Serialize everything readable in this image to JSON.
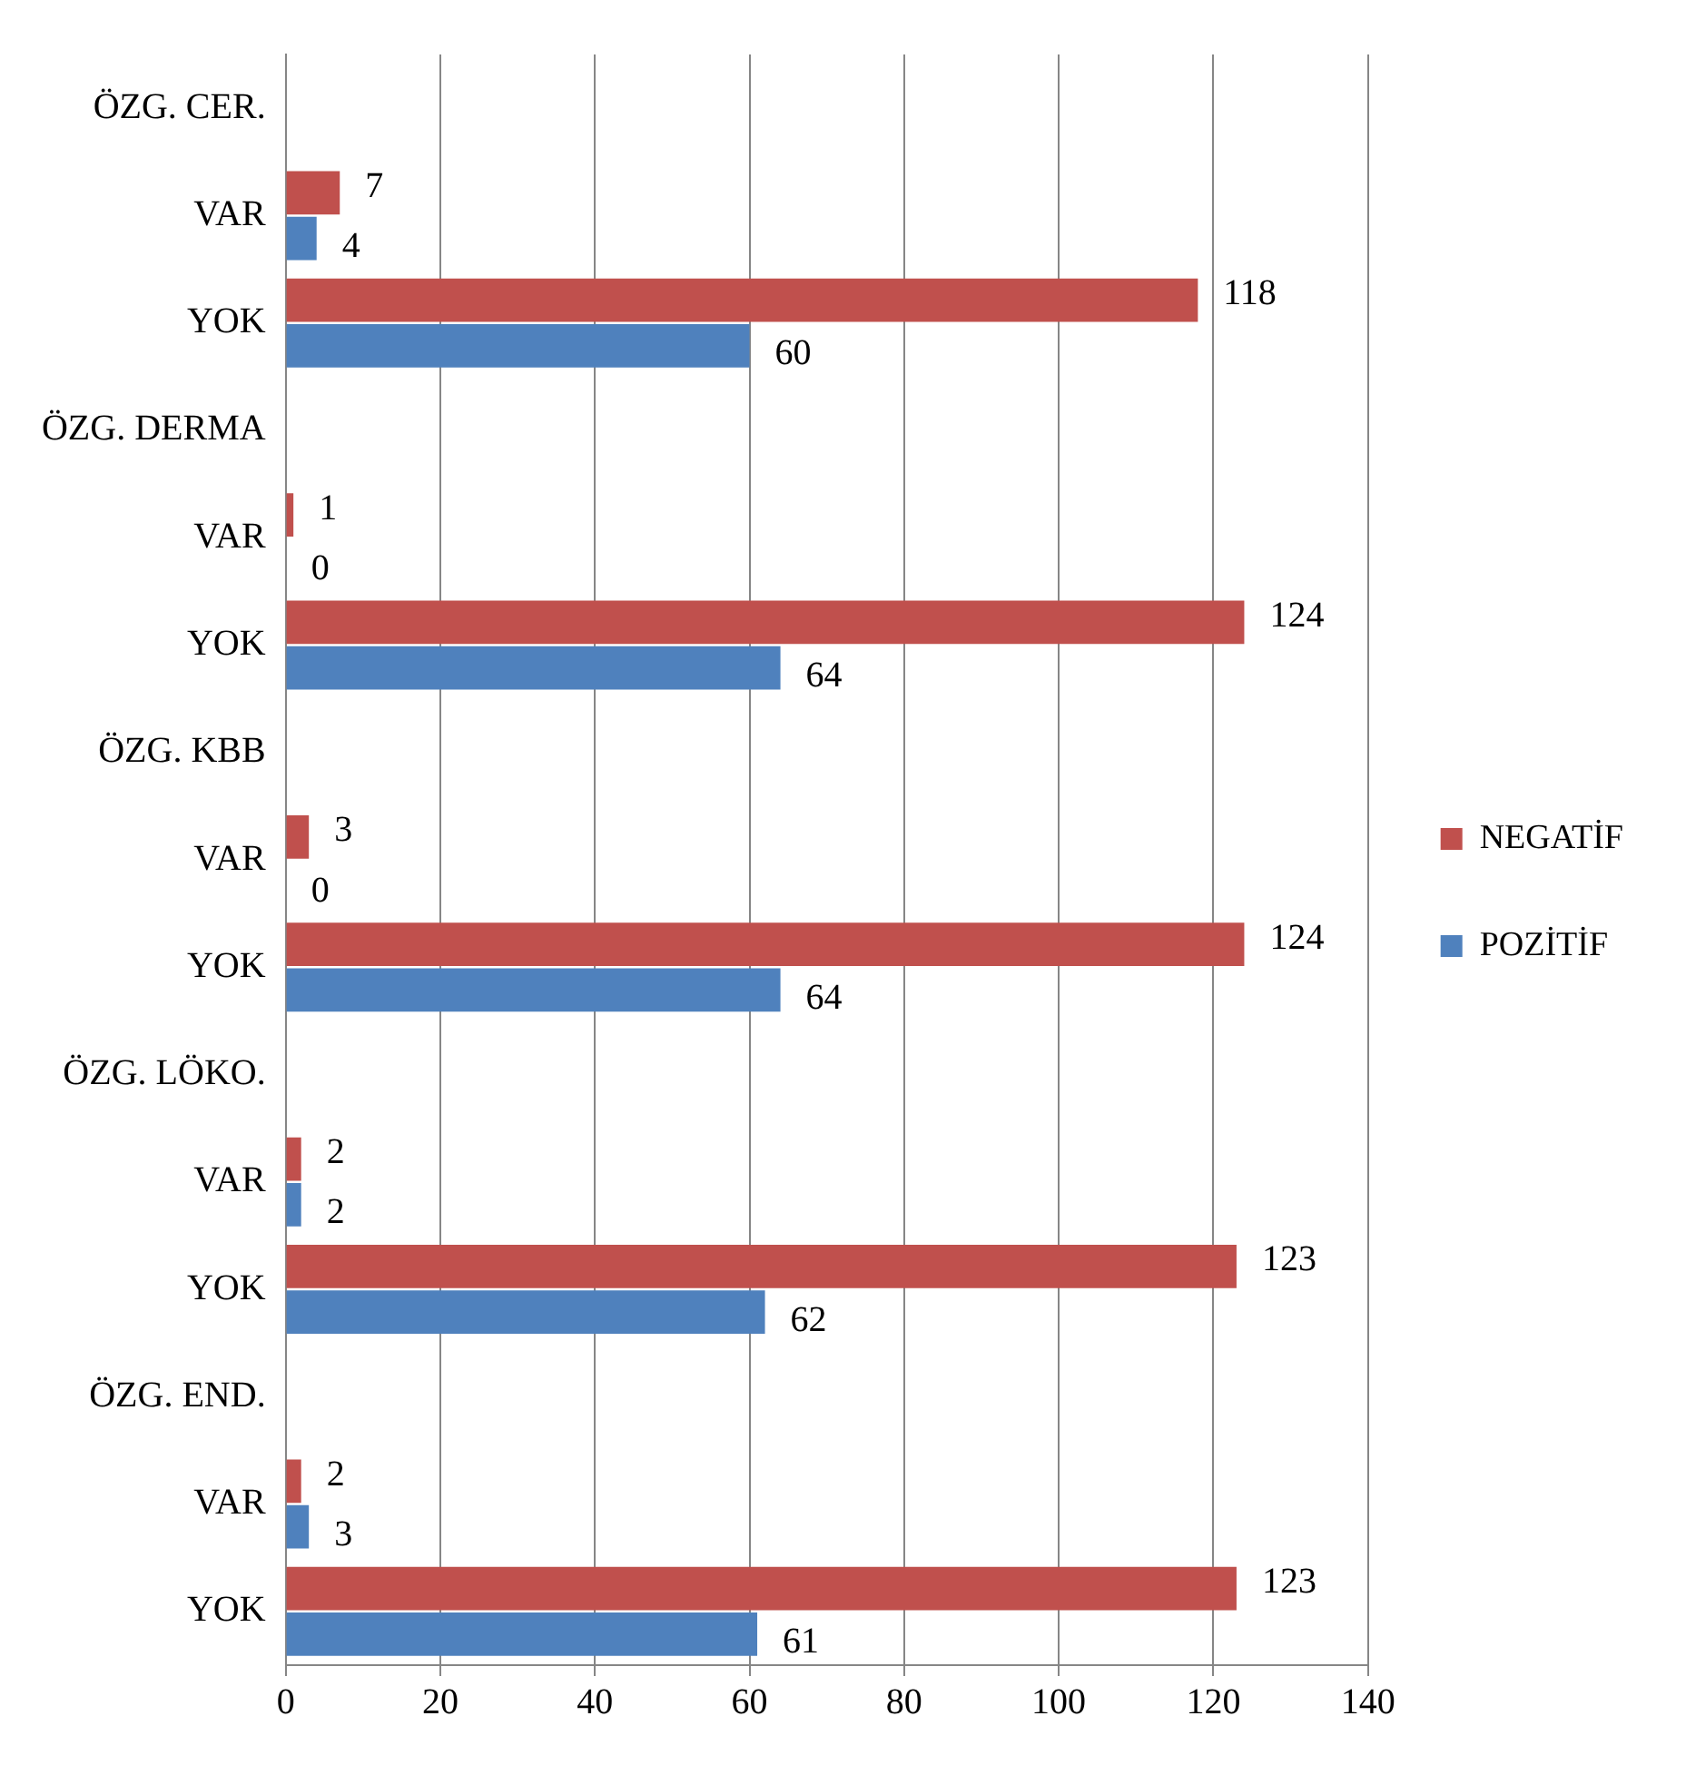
{
  "chart_data": {
    "type": "bar",
    "orientation": "horizontal",
    "categories": [
      "ÖZG. CER.",
      "VAR",
      "YOK",
      "ÖZG. DERMA",
      "VAR",
      "YOK",
      "ÖZG. KBB",
      "VAR",
      "YOK",
      "ÖZG. LÖKO.",
      "VAR",
      "YOK",
      "ÖZG. END.",
      "VAR",
      "YOK"
    ],
    "series": [
      {
        "name": "NEGATİF",
        "color": "#c0504d",
        "values": [
          null,
          7,
          118,
          null,
          1,
          124,
          null,
          3,
          124,
          null,
          2,
          123,
          null,
          2,
          123
        ]
      },
      {
        "name": "POZİTİF",
        "color": "#4f81bd",
        "values": [
          null,
          4,
          60,
          null,
          0,
          64,
          null,
          0,
          64,
          null,
          2,
          62,
          null,
          3,
          61
        ]
      }
    ],
    "xlim": [
      0,
      140
    ],
    "xticks": [
      0,
      20,
      40,
      60,
      80,
      100,
      120,
      140
    ],
    "grid": "x",
    "legend": "right",
    "data_labels": true
  }
}
